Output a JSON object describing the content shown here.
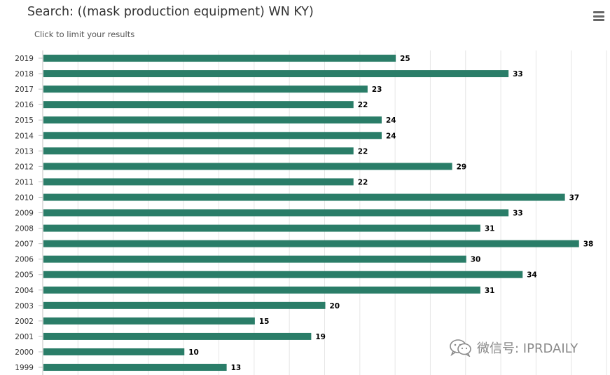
{
  "header": {
    "title": "Search: ((mask production equipment) WN KY)",
    "subtitle": "Click to limit your results",
    "menu_icon": "hamburger-menu-icon"
  },
  "watermark": {
    "text": "微信号: IPRDAILY",
    "icon": "wechat-icon"
  },
  "colors": {
    "bar": "#2a7d68",
    "grid": "#e6e6e6",
    "axis": "#c0c0c0"
  },
  "chart_data": {
    "type": "bar",
    "orientation": "horizontal",
    "categories": [
      "2019",
      "2018",
      "2017",
      "2016",
      "2015",
      "2014",
      "2013",
      "2012",
      "2011",
      "2010",
      "2009",
      "2008",
      "2007",
      "2006",
      "2005",
      "2004",
      "2003",
      "2002",
      "2001",
      "2000",
      "1999"
    ],
    "values": [
      25,
      33,
      23,
      22,
      24,
      24,
      22,
      29,
      22,
      37,
      33,
      31,
      38,
      30,
      34,
      31,
      20,
      15,
      19,
      10,
      13
    ],
    "title": "Search: ((mask production equipment) WN KY)",
    "subtitle": "Click to limit your results",
    "xlim": [
      0,
      40
    ],
    "grid": true,
    "data_labels": true,
    "legend": "none"
  }
}
